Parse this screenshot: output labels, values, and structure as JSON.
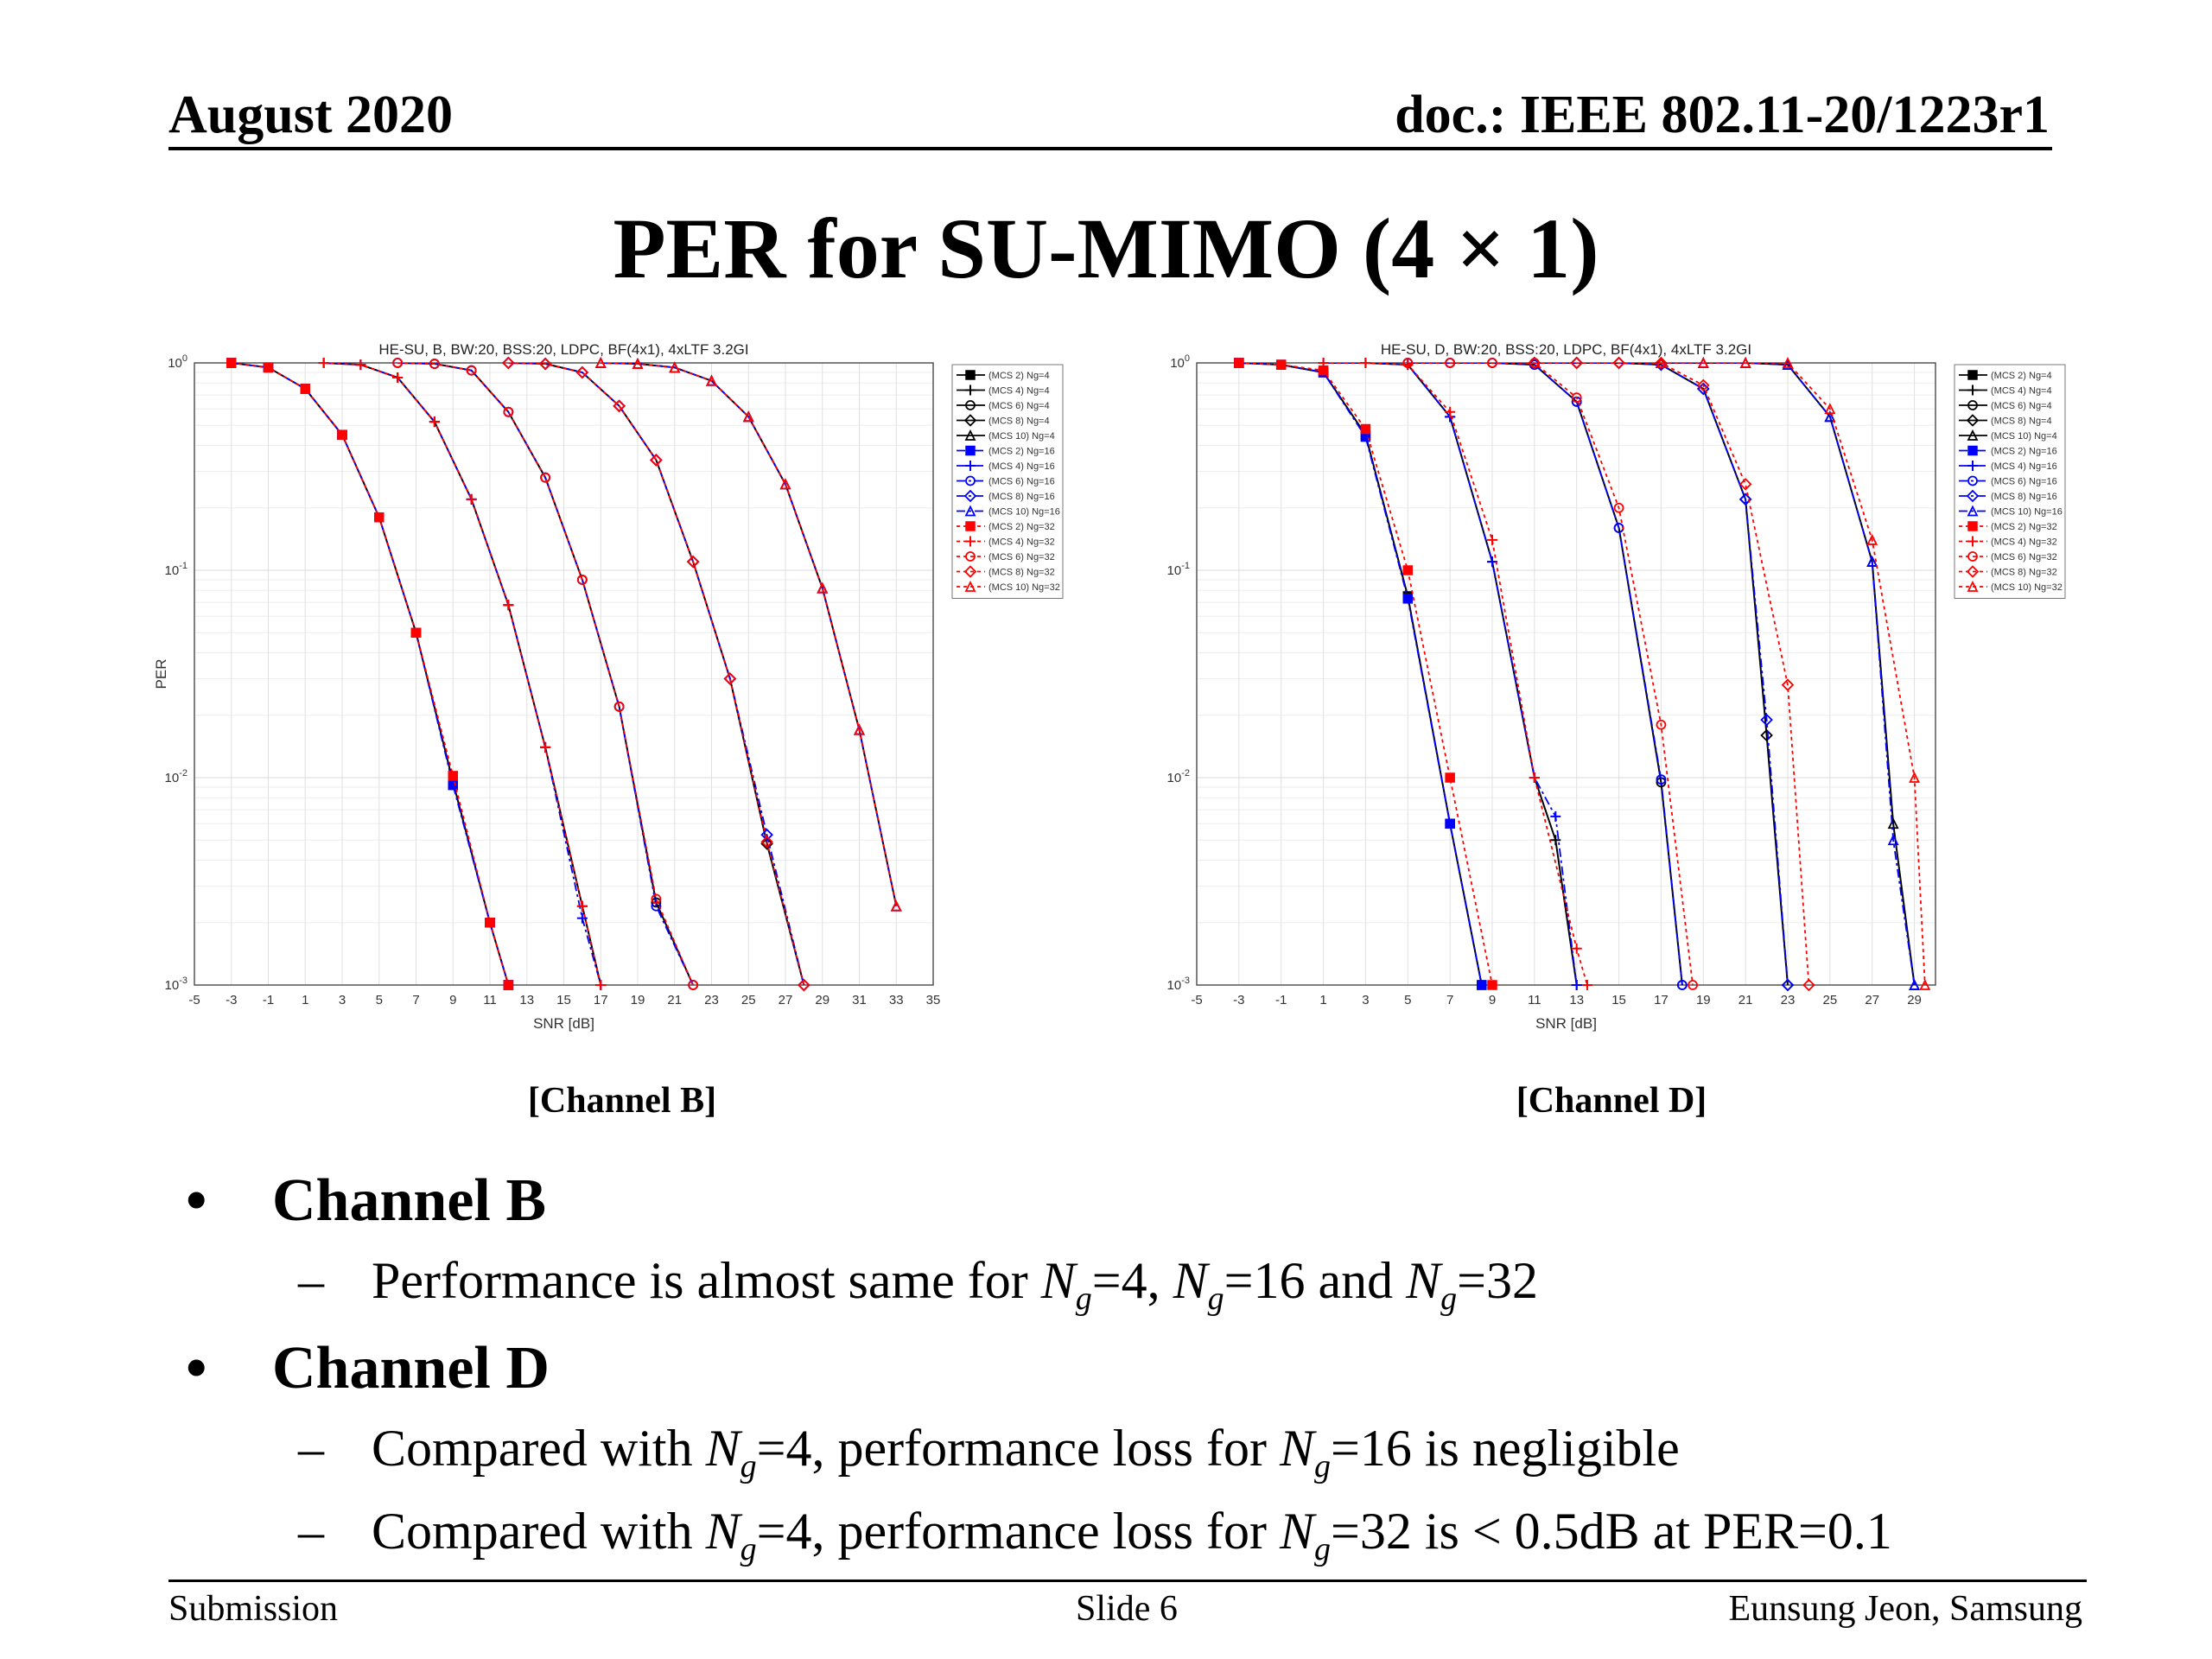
{
  "header": {
    "date": "August 2020",
    "doc": "doc.: IEEE 802.11-20/1223r1"
  },
  "title": "PER for SU-MIMO (4 × 1)",
  "captions": [
    "[Channel B]",
    "[Channel D]"
  ],
  "bullets": [
    {
      "label": "Channel B",
      "subs": [
        {
          "parts": [
            "Performance is almost same for ",
            "=4, ",
            "=16 and ",
            "=32"
          ]
        }
      ]
    },
    {
      "label": "Channel D",
      "subs": [
        {
          "parts": [
            "Compared with ",
            "=4, performance loss for ",
            "=16 is negligible"
          ]
        },
        {
          "parts": [
            "Compared with ",
            "=4, performance loss for ",
            "=32 is < 0.5dB at PER=0.1"
          ]
        }
      ]
    }
  ],
  "ng_symbol": {
    "main": "N",
    "sub": "g"
  },
  "footer": {
    "left": "Submission",
    "center": "Slide 6",
    "right": "Eunsung Jeon, Samsung"
  },
  "colors": {
    "ng4": "#000000",
    "ng16": "#0000ff",
    "ng32": "#ff0000"
  },
  "chart_data": [
    {
      "type": "line",
      "title": "HE-SU, B, BW:20, BSS:20, LDPC, BF(4x1), 4xLTF 3.2GI",
      "xlabel": "SNR [dB]",
      "ylabel": "PER",
      "xlim": [
        -5,
        35
      ],
      "ylim": [
        0.001,
        1
      ],
      "yscale": "log",
      "xticks": [
        "-5",
        "-3",
        "-1",
        "1",
        "3",
        "5",
        "7",
        "9",
        "11",
        "13",
        "15",
        "17",
        "19",
        "21",
        "23",
        "25",
        "27",
        "29",
        "31",
        "33",
        "35"
      ],
      "yticks": [
        "10^0",
        "10^-1",
        "10^-2",
        "10^-3"
      ],
      "grid": true,
      "legend_position": "outside-right",
      "legend": [
        "(MCS 2) Ng=4",
        "(MCS 4) Ng=4",
        "(MCS 6) Ng=4",
        "(MCS 8) Ng=4",
        "(MCS 10) Ng=4",
        "(MCS 2) Ng=16",
        "(MCS 4) Ng=16",
        "(MCS 6) Ng=16",
        "(MCS 8) Ng=16",
        "(MCS 10) Ng=16",
        "(MCS 2) Ng=32",
        "(MCS 4) Ng=32",
        "(MCS 6) Ng=32",
        "(MCS 8) Ng=32",
        "(MCS 10) Ng=32"
      ],
      "series": [
        {
          "name": "(MCS 2) Ng=4",
          "x": [
            -3,
            -1,
            1,
            3,
            5,
            7,
            9,
            11,
            12
          ],
          "y": [
            1,
            0.95,
            0.75,
            0.45,
            0.18,
            0.05,
            0.0095,
            0.002,
            0.001
          ]
        },
        {
          "name": "(MCS 4) Ng=4",
          "x": [
            2,
            4,
            6,
            8,
            10,
            12,
            14,
            16,
            17
          ],
          "y": [
            1,
            0.98,
            0.85,
            0.52,
            0.22,
            0.068,
            0.014,
            0.0024,
            0.001
          ]
        },
        {
          "name": "(MCS 6) Ng=4",
          "x": [
            6,
            8,
            10,
            12,
            14,
            16,
            18,
            20,
            22
          ],
          "y": [
            1,
            0.99,
            0.92,
            0.58,
            0.28,
            0.09,
            0.022,
            0.0025,
            0.001
          ]
        },
        {
          "name": "(MCS 8) Ng=4",
          "x": [
            12,
            14,
            16,
            18,
            20,
            22,
            24,
            26,
            28
          ],
          "y": [
            1,
            0.99,
            0.9,
            0.62,
            0.34,
            0.11,
            0.03,
            0.0048,
            0.001
          ]
        },
        {
          "name": "(MCS 10) Ng=4",
          "x": [
            17,
            19,
            21,
            23,
            25,
            27,
            29,
            31,
            33
          ],
          "y": [
            1,
            0.99,
            0.95,
            0.82,
            0.55,
            0.26,
            0.082,
            0.017,
            0.0024
          ]
        },
        {
          "name": "(MCS 2) Ng=16",
          "x": [
            -3,
            -1,
            1,
            3,
            5,
            7,
            9,
            11,
            12
          ],
          "y": [
            1,
            0.95,
            0.75,
            0.45,
            0.18,
            0.05,
            0.0092,
            0.002,
            0.001
          ]
        },
        {
          "name": "(MCS 4) Ng=16",
          "x": [
            2,
            4,
            6,
            8,
            10,
            12,
            14,
            16,
            17
          ],
          "y": [
            1,
            0.98,
            0.85,
            0.52,
            0.22,
            0.068,
            0.014,
            0.0021,
            0.001
          ]
        },
        {
          "name": "(MCS 6) Ng=16",
          "x": [
            6,
            8,
            10,
            12,
            14,
            16,
            18,
            20,
            22
          ],
          "y": [
            1,
            0.99,
            0.92,
            0.58,
            0.28,
            0.09,
            0.022,
            0.0024,
            0.001
          ]
        },
        {
          "name": "(MCS 8) Ng=16",
          "x": [
            12,
            14,
            16,
            18,
            20,
            22,
            24,
            26,
            28
          ],
          "y": [
            1,
            0.99,
            0.9,
            0.62,
            0.34,
            0.11,
            0.03,
            0.0053,
            0.001
          ]
        },
        {
          "name": "(MCS 10) Ng=16",
          "x": [
            17,
            19,
            21,
            23,
            25,
            27,
            29,
            31,
            33
          ],
          "y": [
            1,
            0.99,
            0.95,
            0.82,
            0.55,
            0.26,
            0.082,
            0.017,
            0.0024
          ]
        },
        {
          "name": "(MCS 2) Ng=32",
          "x": [
            -3,
            -1,
            1,
            3,
            5,
            7,
            9,
            11,
            12
          ],
          "y": [
            1,
            0.95,
            0.75,
            0.45,
            0.18,
            0.05,
            0.0102,
            0.002,
            0.001
          ]
        },
        {
          "name": "(MCS 4) Ng=32",
          "x": [
            2,
            4,
            6,
            8,
            10,
            12,
            14,
            16,
            17
          ],
          "y": [
            1,
            0.98,
            0.85,
            0.52,
            0.22,
            0.068,
            0.014,
            0.0024,
            0.001
          ]
        },
        {
          "name": "(MCS 6) Ng=32",
          "x": [
            6,
            8,
            10,
            12,
            14,
            16,
            18,
            20,
            22
          ],
          "y": [
            1,
            0.99,
            0.92,
            0.58,
            0.28,
            0.09,
            0.022,
            0.0026,
            0.001
          ]
        },
        {
          "name": "(MCS 8) Ng=32",
          "x": [
            12,
            14,
            16,
            18,
            20,
            22,
            24,
            26,
            28
          ],
          "y": [
            1,
            0.99,
            0.9,
            0.62,
            0.34,
            0.11,
            0.03,
            0.0049,
            0.001
          ]
        },
        {
          "name": "(MCS 10) Ng=32",
          "x": [
            17,
            19,
            21,
            23,
            25,
            27,
            29,
            31,
            33
          ],
          "y": [
            1,
            0.99,
            0.95,
            0.82,
            0.55,
            0.26,
            0.082,
            0.017,
            0.0024
          ]
        }
      ]
    },
    {
      "type": "line",
      "title": "HE-SU, D, BW:20, BSS:20, LDPC, BF(4x1), 4xLTF 3.2GI",
      "xlabel": "SNR [dB]",
      "ylabel": "",
      "xlim": [
        -5,
        30
      ],
      "ylim": [
        0.001,
        1
      ],
      "yscale": "log",
      "xticks": [
        "-5",
        "-3",
        "-1",
        "1",
        "3",
        "5",
        "7",
        "9",
        "11",
        "13",
        "15",
        "17",
        "19",
        "21",
        "23",
        "25",
        "27",
        "29"
      ],
      "yticks": [
        "10^0",
        "10^-1",
        "10^-2",
        "10^-3"
      ],
      "grid": true,
      "legend_position": "outside-right",
      "legend": [
        "(MCS 2) Ng=4",
        "(MCS 4) Ng=4",
        "(MCS 6) Ng=4",
        "(MCS 8) Ng=4",
        "(MCS 10) Ng=4",
        "(MCS 2) Ng=16",
        "(MCS 4) Ng=16",
        "(MCS 6) Ng=16",
        "(MCS 8) Ng=16",
        "(MCS 10) Ng=16",
        "(MCS 2) Ng=32",
        "(MCS 4) Ng=32",
        "(MCS 6) Ng=32",
        "(MCS 8) Ng=32",
        "(MCS 10) Ng=32"
      ],
      "series": [
        {
          "name": "(MCS 2) Ng=4",
          "x": [
            -3,
            -1,
            1,
            3,
            5,
            7,
            8.5
          ],
          "y": [
            1,
            0.98,
            0.9,
            0.45,
            0.075,
            0.006,
            0.001
          ]
        },
        {
          "name": "(MCS 4) Ng=4",
          "x": [
            1,
            3,
            5,
            7,
            9,
            11,
            12,
            13
          ],
          "y": [
            1,
            1,
            0.98,
            0.55,
            0.11,
            0.01,
            0.005,
            0.001
          ]
        },
        {
          "name": "(MCS 6) Ng=4",
          "x": [
            5,
            7,
            9,
            11,
            13,
            15,
            17,
            18
          ],
          "y": [
            1,
            1,
            1,
            0.98,
            0.65,
            0.16,
            0.0095,
            0.001
          ]
        },
        {
          "name": "(MCS 8) Ng=4",
          "x": [
            11,
            13,
            15,
            17,
            19,
            21,
            22,
            23
          ],
          "y": [
            1,
            1,
            1,
            0.98,
            0.75,
            0.22,
            0.016,
            0.001
          ]
        },
        {
          "name": "(MCS 10) Ng=4",
          "x": [
            17,
            19,
            21,
            23,
            25,
            27,
            28,
            29
          ],
          "y": [
            1,
            1,
            1,
            0.98,
            0.55,
            0.11,
            0.006,
            0.001
          ]
        },
        {
          "name": "(MCS 2) Ng=16",
          "x": [
            -3,
            -1,
            1,
            3,
            5,
            7,
            8.5
          ],
          "y": [
            1,
            0.98,
            0.9,
            0.44,
            0.073,
            0.006,
            0.001
          ]
        },
        {
          "name": "(MCS 4) Ng=16",
          "x": [
            1,
            3,
            5,
            7,
            9,
            11,
            12,
            13
          ],
          "y": [
            1,
            1,
            0.98,
            0.55,
            0.11,
            0.01,
            0.0065,
            0.001
          ]
        },
        {
          "name": "(MCS 6) Ng=16",
          "x": [
            5,
            7,
            9,
            11,
            13,
            15,
            17,
            18
          ],
          "y": [
            1,
            1,
            1,
            0.98,
            0.65,
            0.16,
            0.0098,
            0.001
          ]
        },
        {
          "name": "(MCS 8) Ng=16",
          "x": [
            11,
            13,
            15,
            17,
            19,
            21,
            22,
            23
          ],
          "y": [
            1,
            1,
            1,
            0.98,
            0.75,
            0.22,
            0.019,
            0.001
          ]
        },
        {
          "name": "(MCS 10) Ng=16",
          "x": [
            17,
            19,
            21,
            23,
            25,
            27,
            28,
            29
          ],
          "y": [
            1,
            1,
            1,
            0.98,
            0.55,
            0.11,
            0.005,
            0.001
          ]
        },
        {
          "name": "(MCS 2) Ng=32",
          "x": [
            -3,
            -1,
            1,
            3,
            5,
            7,
            9
          ],
          "y": [
            1,
            0.98,
            0.92,
            0.48,
            0.1,
            0.01,
            0.001
          ]
        },
        {
          "name": "(MCS 4) Ng=32",
          "x": [
            1,
            3,
            5,
            7,
            9,
            11,
            13,
            13.5
          ],
          "y": [
            1,
            1,
            0.98,
            0.58,
            0.14,
            0.01,
            0.0015,
            0.001
          ]
        },
        {
          "name": "(MCS 6) Ng=32",
          "x": [
            5,
            7,
            9,
            11,
            13,
            15,
            17,
            18.5
          ],
          "y": [
            1,
            1,
            1,
            1,
            0.68,
            0.2,
            0.018,
            0.001
          ]
        },
        {
          "name": "(MCS 8) Ng=32",
          "x": [
            11,
            13,
            15,
            17,
            19,
            21,
            23,
            24
          ],
          "y": [
            1,
            1,
            1,
            1,
            0.78,
            0.26,
            0.028,
            0.001
          ]
        },
        {
          "name": "(MCS 10) Ng=32",
          "x": [
            17,
            19,
            21,
            23,
            25,
            27,
            29,
            29.5
          ],
          "y": [
            1,
            1,
            1,
            1,
            0.6,
            0.14,
            0.01,
            0.001
          ]
        }
      ]
    }
  ]
}
